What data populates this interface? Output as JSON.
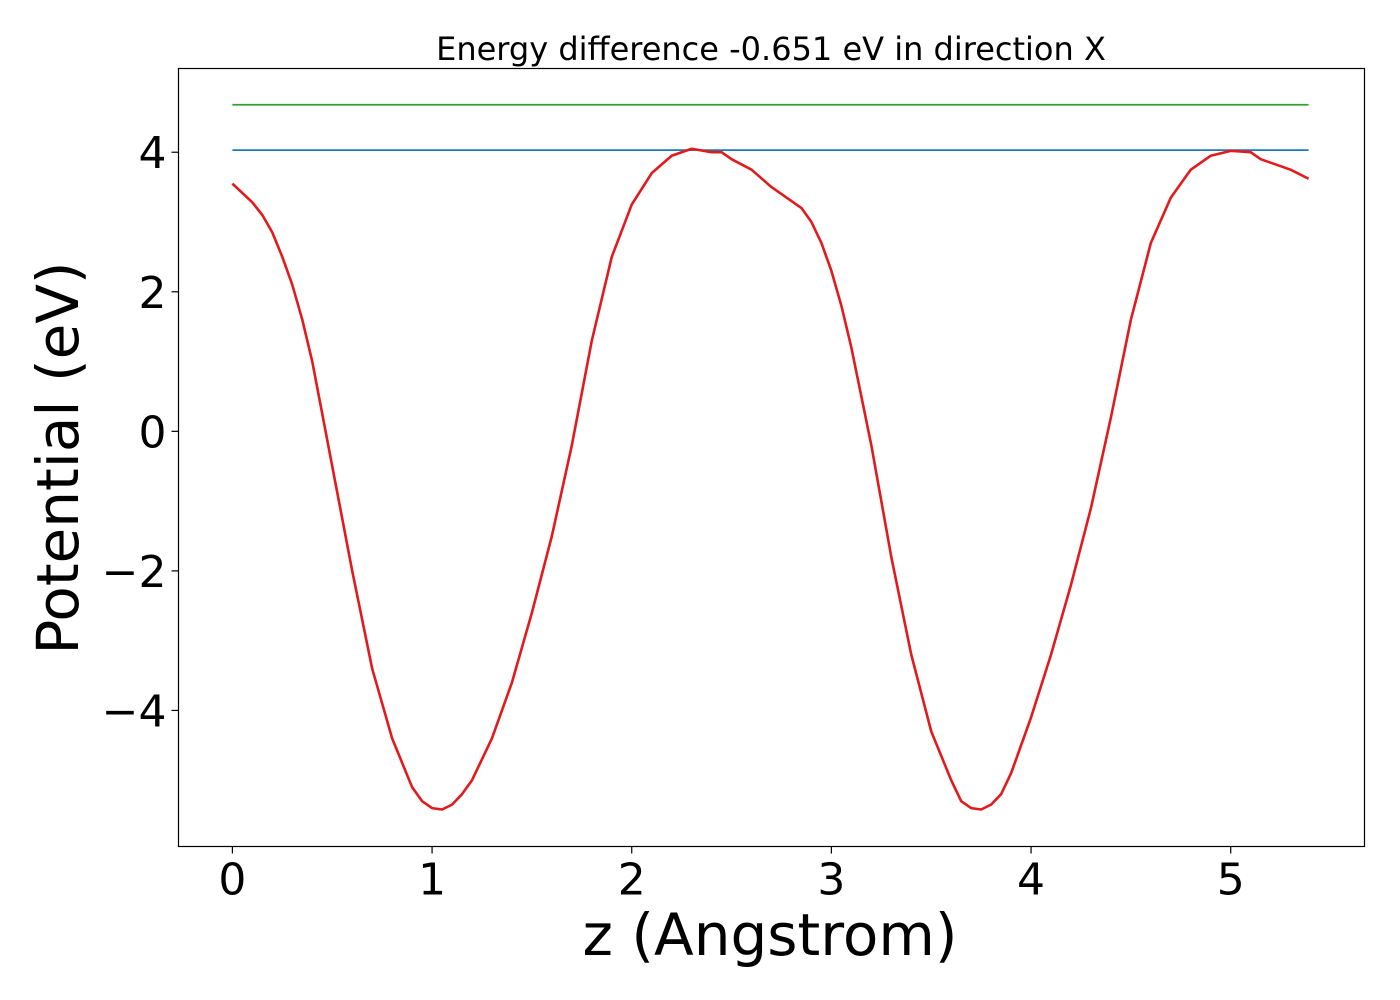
{
  "chart_data": {
    "type": "line",
    "title": "Energy difference -0.651 eV in direction X",
    "xlabel": "z (Angstrom)",
    "ylabel": "Potential (eV)",
    "xlim": [
      -0.27,
      5.67
    ],
    "ylim": [
      -5.95,
      5.2
    ],
    "xticks": [
      0,
      1,
      2,
      3,
      4,
      5
    ],
    "xtick_labels": [
      "0",
      "1",
      "2",
      "3",
      "4",
      "5"
    ],
    "yticks": [
      4,
      2,
      0,
      -2,
      -4
    ],
    "ytick_labels": [
      "4",
      "2",
      "0",
      "−2",
      "−4"
    ],
    "grid": false,
    "legend": "none",
    "series": [
      {
        "color": "#e31a1c",
        "x": [
          0,
          0.1,
          0.15,
          0.2,
          0.25,
          0.3,
          0.35,
          0.4,
          0.5,
          0.6,
          0.7,
          0.8,
          0.9,
          0.95,
          1.0,
          1.05,
          1.1,
          1.15,
          1.2,
          1.3,
          1.4,
          1.5,
          1.6,
          1.7,
          1.8,
          1.9,
          2.0,
          2.1,
          2.2,
          2.3,
          2.4,
          2.45,
          2.5,
          2.6,
          2.7,
          2.8,
          2.85,
          2.9,
          2.95,
          3.0,
          3.05,
          3.1,
          3.2,
          3.3,
          3.4,
          3.5,
          3.6,
          3.65,
          3.7,
          3.75,
          3.8,
          3.85,
          3.9,
          4.0,
          4.1,
          4.2,
          4.3,
          4.4,
          4.5,
          4.6,
          4.7,
          4.8,
          4.9,
          5.0,
          5.1,
          5.15,
          5.2,
          5.3,
          5.39
        ],
        "y": [
          3.55,
          3.28,
          3.1,
          2.85,
          2.5,
          2.1,
          1.6,
          1.0,
          -0.5,
          -2.0,
          -3.4,
          -4.4,
          -5.1,
          -5.3,
          -5.4,
          -5.42,
          -5.35,
          -5.2,
          -5.0,
          -4.4,
          -3.6,
          -2.6,
          -1.5,
          -0.2,
          1.3,
          2.5,
          3.25,
          3.7,
          3.95,
          4.05,
          4.0,
          4.0,
          3.9,
          3.75,
          3.5,
          3.3,
          3.2,
          3.0,
          2.7,
          2.3,
          1.8,
          1.2,
          -0.2,
          -1.8,
          -3.2,
          -4.3,
          -5.0,
          -5.3,
          -5.4,
          -5.42,
          -5.35,
          -5.2,
          -4.9,
          -4.1,
          -3.2,
          -2.2,
          -1.1,
          0.2,
          1.6,
          2.7,
          3.35,
          3.75,
          3.95,
          4.02,
          4.0,
          3.9,
          3.85,
          3.75,
          3.62
        ]
      },
      {
        "color": "#1f78b4",
        "x": [
          0,
          5.39
        ],
        "y": [
          4.03,
          4.03
        ]
      },
      {
        "color": "#33a02c",
        "x": [
          0,
          5.39
        ],
        "y": [
          4.68,
          4.68
        ]
      }
    ]
  }
}
